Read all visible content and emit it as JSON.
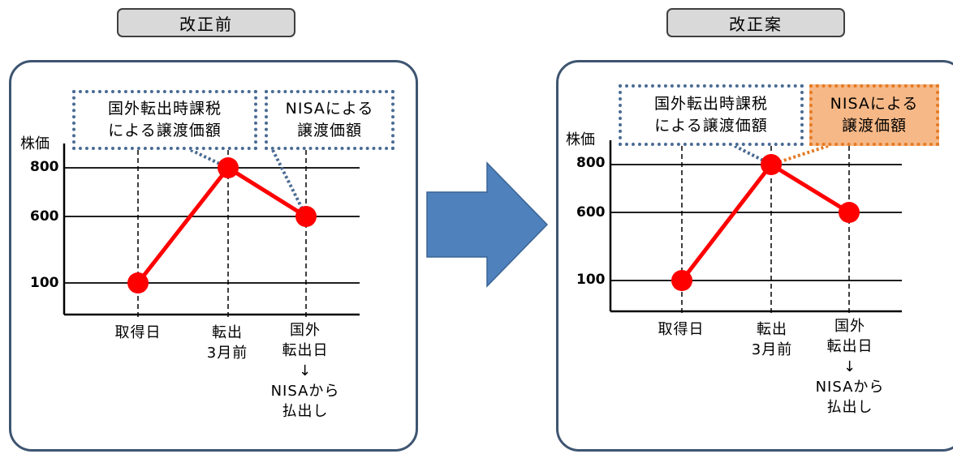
{
  "left": {
    "title": "改正前",
    "y_label": "株価",
    "ticks": [
      "800",
      "600",
      "100"
    ],
    "callout_transfer": [
      "国外転出時課税",
      "による譲渡価額"
    ],
    "callout_nisa": [
      "NISAによる",
      "譲渡価額"
    ],
    "x_categories": [
      [
        "取得日"
      ],
      [
        "転出",
        "3月前"
      ],
      [
        "国外",
        "転出日",
        "↓",
        "NISAから",
        "払出し"
      ]
    ]
  },
  "right": {
    "title": "改正案",
    "y_label": "株価",
    "ticks": [
      "800",
      "600",
      "100"
    ],
    "callout_transfer": [
      "国外転出時課税",
      "による譲渡価額"
    ],
    "callout_nisa": [
      "NISAによる",
      "譲渡価額"
    ],
    "x_categories": [
      [
        "取得日"
      ],
      [
        "転出",
        "3月前"
      ],
      [
        "国外",
        "転出日",
        "↓",
        "NISAから",
        "払出し"
      ]
    ]
  },
  "chart_data": [
    {
      "type": "line",
      "title": "改正前",
      "ylabel": "株価",
      "categories": [
        "取得日",
        "転出 3月前",
        "国外 転出日 ↓ NISAから 払出し"
      ],
      "series": [
        {
          "values": [
            100,
            800,
            600
          ]
        }
      ],
      "y_ticks": [
        800,
        600,
        100
      ],
      "grid": true,
      "highlight_nisa": false,
      "colors": {
        "line": "#ff0000",
        "callout_border": "#4a6b93"
      }
    },
    {
      "type": "line",
      "title": "改正案",
      "ylabel": "株価",
      "categories": [
        "取得日",
        "転出 3月前",
        "国外 転出日 ↓ NISAから 払出し"
      ],
      "series": [
        {
          "values": [
            100,
            800,
            600
          ]
        }
      ],
      "y_ticks": [
        800,
        600,
        100
      ],
      "grid": true,
      "highlight_nisa": true,
      "colors": {
        "line": "#ff0000",
        "callout_border": "#4a6b93",
        "highlight_fill": "#f6b887",
        "highlight_border": "#e57a23"
      }
    }
  ],
  "colors": {
    "panel_border": "#3e5571",
    "arrow": "#4f81bd",
    "tag_fill": "#d9d9d9"
  }
}
